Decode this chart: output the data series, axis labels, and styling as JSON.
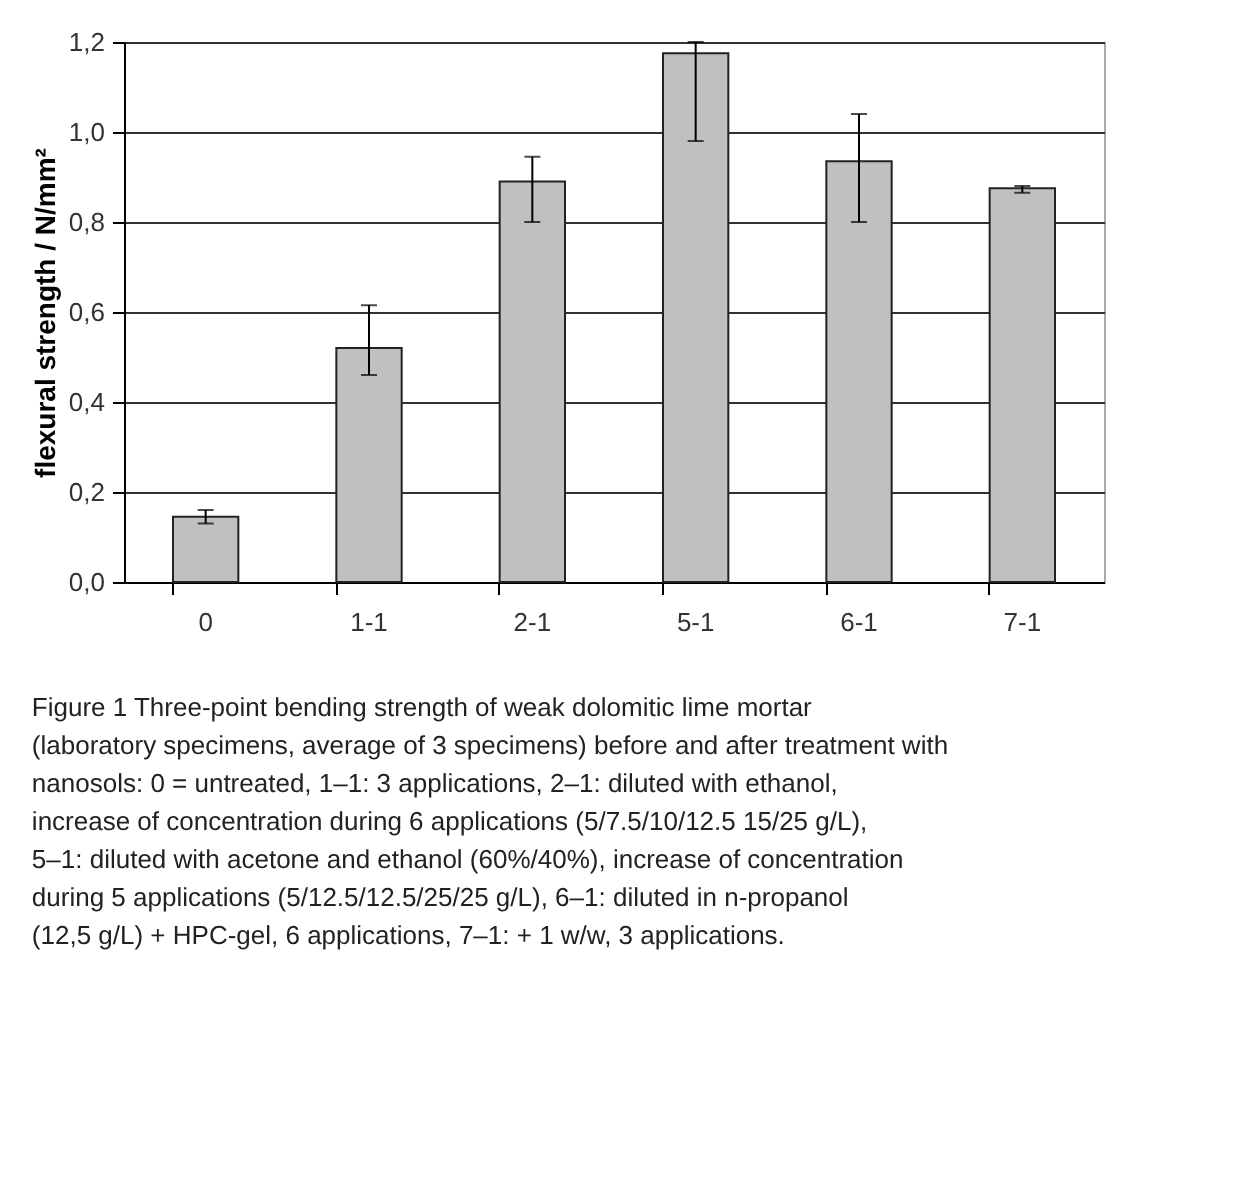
{
  "chart_data": {
    "type": "bar",
    "ylabel": "flexural strength / N/mm²",
    "categories": [
      "0",
      "1-1",
      "2-1",
      "5-1",
      "6-1",
      "7-1"
    ],
    "values": [
      0.145,
      0.52,
      0.89,
      1.175,
      0.935,
      0.875
    ],
    "errors": [
      [
        0.13,
        0.16
      ],
      [
        0.46,
        0.615
      ],
      [
        0.8,
        0.945
      ],
      [
        0.98,
        1.2
      ],
      [
        0.8,
        1.04
      ],
      [
        0.865,
        0.88
      ]
    ],
    "color": "#c0c0c0",
    "ylim": [
      0,
      1.2
    ],
    "yticks": [
      {
        "value": 0,
        "label": "0,0"
      },
      {
        "value": 0.2,
        "label": "0,2"
      },
      {
        "value": 0.4,
        "label": "0,4"
      },
      {
        "value": 0.6,
        "label": "0,6"
      },
      {
        "value": 0.8,
        "label": "0,8"
      },
      {
        "value": 1.0,
        "label": "1,0"
      },
      {
        "value": 1.2,
        "label": "1,2"
      }
    ],
    "grid": "y",
    "annotations": [
      "Figure 1 Three-point bending strength of weak dolomitic lime mortar (laboratory specimens, average of 3 specimens) before and after treatment with nanosols: 0 = untreated, 1–1: 3 applications, 2–1: diluted with ethanol, increase of concentration during 6 applications (5/7.5/10/12.5 15/25 g/L), 5–1: diluted with acetone and ethanol (60%/40%), increase of concentration during 5 applications (5/12.5/12.5/25/25 g/L), 6–1: diluted in n-propanol (12,5 g/L) + HPC-gel, 6 applications, 7–1: + 1 w/w, 3 applications."
    ]
  }
}
